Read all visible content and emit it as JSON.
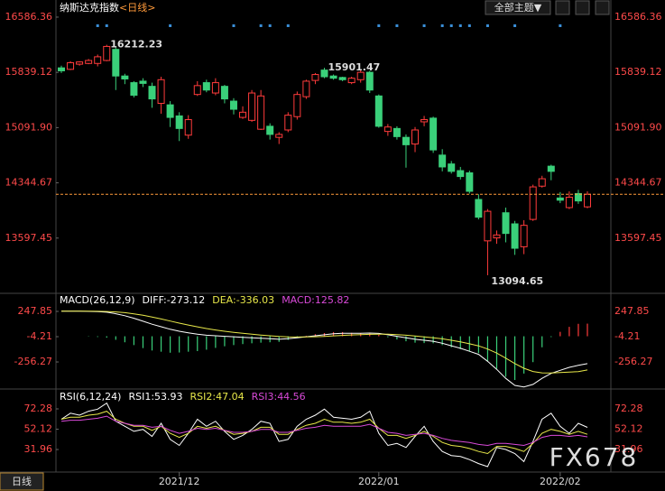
{
  "header": {
    "title": "纳斯达克指数",
    "period": "<日线>",
    "theme_button": "全部主题▼"
  },
  "chart_data": [
    {
      "type": "candlestick",
      "categories": [
        null,
        null,
        null,
        null,
        null,
        null,
        null,
        null,
        null,
        null,
        null,
        null,
        null,
        "2021/12",
        null,
        null,
        null,
        null,
        null,
        null,
        null,
        null,
        null,
        null,
        null,
        null,
        null,
        null,
        null,
        null,
        null,
        null,
        null,
        null,
        null,
        "2022/01",
        null,
        null,
        null,
        null,
        null,
        null,
        null,
        null,
        null,
        null,
        null,
        null,
        null,
        null,
        null,
        null,
        null,
        null,
        null,
        "2022/02",
        null,
        null,
        null
      ],
      "candles": [
        [
          15900,
          15930,
          15830,
          15860
        ],
        [
          15880,
          15990,
          15870,
          15970
        ],
        [
          15950,
          15990,
          15930,
          15980
        ],
        [
          15960,
          16020,
          15950,
          16000
        ],
        [
          15960,
          16080,
          15920,
          16050
        ],
        [
          16000,
          16212.23,
          15990,
          16190
        ],
        [
          16150,
          16180,
          15600,
          15790
        ],
        [
          15790,
          15820,
          15680,
          15750
        ],
        [
          15700,
          15720,
          15500,
          15530
        ],
        [
          15720,
          15760,
          15640,
          15690
        ],
        [
          15650,
          15700,
          15360,
          15480
        ],
        [
          15420,
          15780,
          15280,
          15740
        ],
        [
          15400,
          15450,
          15100,
          15230
        ],
        [
          15250,
          15300,
          14910,
          15080
        ],
        [
          14990,
          15260,
          14940,
          15200
        ],
        [
          15540,
          15720,
          15520,
          15660
        ],
        [
          15700,
          15740,
          15570,
          15600
        ],
        [
          15560,
          15760,
          15530,
          15700
        ],
        [
          15650,
          15670,
          15420,
          15480
        ],
        [
          15450,
          15490,
          15270,
          15340
        ],
        [
          15230,
          15380,
          15210,
          15300
        ],
        [
          15190,
          15600,
          15170,
          15560
        ],
        [
          15070,
          15600,
          15060,
          15520
        ],
        [
          15110,
          15150,
          14930,
          15000
        ],
        [
          14960,
          15030,
          14870,
          15000
        ],
        [
          15060,
          15300,
          15030,
          15260
        ],
        [
          15240,
          15580,
          15200,
          15540
        ],
        [
          15510,
          15740,
          15480,
          15720
        ],
        [
          15730,
          15830,
          15680,
          15810
        ],
        [
          15870,
          15901.47,
          15760,
          15780
        ],
        [
          15790,
          15810,
          15740,
          15760
        ],
        [
          15770,
          15780,
          15720,
          15740
        ],
        [
          15700,
          15780,
          15680,
          15760
        ],
        [
          15740,
          15880,
          15700,
          15840
        ],
        [
          15840,
          15860,
          15560,
          15600
        ],
        [
          15520,
          15540,
          15090,
          15110
        ],
        [
          15040,
          15140,
          14980,
          15100
        ],
        [
          15080,
          15110,
          14930,
          14970
        ],
        [
          14960,
          15000,
          14550,
          14860
        ],
        [
          14870,
          15100,
          14760,
          15060
        ],
        [
          15170,
          15250,
          15110,
          15200
        ],
        [
          15220,
          15240,
          14750,
          14790
        ],
        [
          14720,
          14800,
          14500,
          14560
        ],
        [
          14600,
          14640,
          14470,
          14500
        ],
        [
          14510,
          14560,
          14390,
          14430
        ],
        [
          14480,
          14510,
          14200,
          14230
        ],
        [
          14120,
          14190,
          13850,
          13880
        ],
        [
          13560,
          13990,
          13094.65,
          13960
        ],
        [
          13600,
          13700,
          13520,
          13640
        ],
        [
          13940,
          14010,
          13540,
          13660
        ],
        [
          13790,
          13830,
          13370,
          13460
        ],
        [
          13480,
          13840,
          13380,
          13770
        ],
        [
          13850,
          14320,
          13830,
          14290
        ],
        [
          14300,
          14440,
          14280,
          14400
        ],
        [
          14570,
          14590,
          14380,
          14500
        ],
        [
          14140,
          14220,
          14070,
          14110
        ],
        [
          14010,
          14230,
          13990,
          14150
        ],
        [
          14200,
          14250,
          14060,
          14100
        ],
        [
          14020,
          14230,
          14000,
          14190
        ]
      ],
      "up_color": "#ff3b3b",
      "down_color": "#3ad07a",
      "high_labels": [
        5,
        29
      ],
      "low_labels": [
        47
      ],
      "signals": [
        4,
        5,
        12,
        19,
        22,
        23,
        25,
        35,
        37,
        40,
        42,
        43,
        44,
        45,
        47,
        50,
        55
      ],
      "signal_color": "#3a8fd8",
      "last_line_color": "#ff9a3a",
      "ylim": [
        12850,
        16818
      ],
      "yticks": [
        16586.36,
        15839.12,
        {
          "value": 15091.9,
          "label": "15091.90"
        },
        14344.67,
        13597.45
      ]
    },
    {
      "type": "macd",
      "title": "MACD(26,12,9)",
      "series": [
        {
          "name": "DIFF:",
          "color": "#ffffff",
          "values": [
            250,
            250,
            250,
            248,
            245,
            240,
            225,
            205,
            180,
            150,
            120,
            95,
            70,
            50,
            35,
            20,
            10,
            5,
            0,
            -5,
            -10,
            -15,
            -20,
            -25,
            -30,
            -25,
            -15,
            -5,
            5,
            15,
            25,
            30,
            30,
            30,
            32,
            28,
            15,
            0,
            -15,
            -30,
            -40,
            -50,
            -70,
            -95,
            -120,
            -150,
            -180,
            -250,
            -330,
            -420,
            -490,
            -505,
            -480,
            -420,
            -370,
            -340,
            -310,
            -290,
            -273.12
          ]
        },
        {
          "name": "DEA:",
          "color": "#e8e84a",
          "values": [
            250,
            250,
            250,
            249.6,
            248.7,
            247,
            242.6,
            235,
            224,
            209,
            191,
            172,
            152,
            131,
            112,
            94,
            77,
            63,
            50,
            39,
            29,
            20,
            12,
            5,
            -2,
            -7,
            -8,
            -7,
            -5,
            -1,
            4,
            9,
            13,
            16,
            19,
            21,
            20,
            16,
            10,
            2,
            -6,
            -15,
            -26,
            -40,
            -56,
            -75,
            -96,
            -127,
            -168,
            -218,
            -272,
            -319,
            -351,
            -365,
            -366,
            -362,
            -357,
            -352,
            -336.03
          ]
        },
        {
          "name": "MACD:",
          "type": "bar",
          "color": "#d94ad9",
          "up_color": "#ff3b3b",
          "down_color": "#3ad07a",
          "values": [
            0,
            0,
            0,
            -3.2,
            -7.4,
            -14,
            -35.2,
            -60,
            -88,
            -118,
            -142,
            -154,
            -164,
            -162,
            -154,
            -148,
            -134,
            -116,
            -100,
            -88,
            -78,
            -70,
            -64,
            -60,
            -56,
            -36,
            -14,
            4,
            20,
            32,
            42,
            42,
            34,
            28,
            26,
            14,
            -10,
            -32,
            -50,
            -64,
            -68,
            -70,
            -88,
            -110,
            -128,
            -150,
            -168,
            -246,
            -324,
            -404,
            -436,
            -372,
            -258,
            -110,
            -8,
            44,
            94,
            124,
            125.82
          ]
        }
      ],
      "ylim": [
        -517,
        410
      ],
      "yticks": [
        247.85,
        -4.21,
        -256.27
      ]
    },
    {
      "type": "line",
      "title": "RSI(6,12,24)",
      "series": [
        {
          "name": "RSI1:",
          "color": "#ffffff",
          "values": [
            62,
            68,
            66,
            70,
            72,
            78,
            60,
            55,
            50,
            52,
            45,
            58,
            42,
            36,
            48,
            62,
            55,
            60,
            50,
            42,
            46,
            52,
            60,
            58,
            40,
            42,
            55,
            62,
            66,
            72,
            64,
            63,
            62,
            64,
            70,
            48,
            36,
            38,
            34,
            45,
            55,
            40,
            30,
            26,
            25,
            22,
            18,
            15,
            34,
            32,
            28,
            20,
            40,
            62,
            68,
            55,
            48,
            58,
            53.93
          ]
        },
        {
          "name": "RSI2:",
          "color": "#e8e84a",
          "values": [
            62,
            64,
            64,
            66,
            67,
            70,
            62,
            58,
            55,
            55,
            51,
            55,
            48,
            44,
            48,
            55,
            53,
            55,
            51,
            47,
            48,
            50,
            54,
            54,
            47,
            47,
            52,
            56,
            58,
            62,
            59,
            59,
            58,
            59,
            62,
            53,
            46,
            46,
            43,
            46,
            50,
            45,
            39,
            36,
            35,
            33,
            30,
            28,
            35,
            35,
            33,
            30,
            38,
            48,
            52,
            50,
            47,
            50,
            47.04
          ]
        },
        {
          "name": "RSI3:",
          "color": "#d94ad9",
          "values": [
            60,
            61,
            61,
            62,
            63,
            65,
            60,
            58,
            56,
            56,
            54,
            55,
            51,
            48,
            50,
            53,
            52,
            53,
            51,
            49,
            49,
            50,
            52,
            52,
            49,
            49,
            51,
            53,
            54,
            56,
            55,
            55,
            55,
            55,
            57,
            53,
            49,
            48,
            46,
            47,
            48,
            46,
            43,
            41,
            40,
            39,
            37,
            36,
            38,
            38,
            37,
            36,
            39,
            44,
            46,
            46,
            45,
            46,
            44.56
          ]
        }
      ],
      "ylim": [
        9.6,
        89.3
      ],
      "yticks": [
        72.28,
        52.12,
        31.96
      ]
    }
  ],
  "footer": {
    "period_button": "日线",
    "watermark": "FX678"
  }
}
